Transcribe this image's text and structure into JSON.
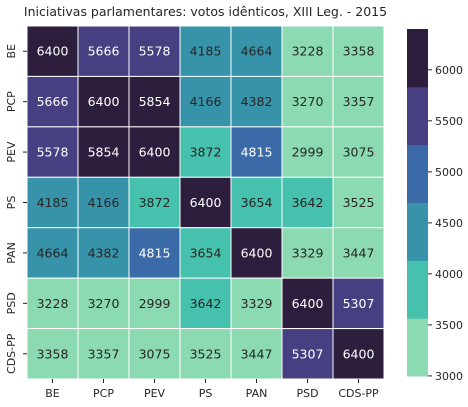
{
  "chart_data": {
    "type": "heatmap",
    "title": "Iniciativas parlamentares: votos idênticos, XIII Leg. - 2015",
    "x_categories": [
      "BE",
      "PCP",
      "PEV",
      "PS",
      "PAN",
      "PSD",
      "CDS-PP"
    ],
    "y_categories": [
      "BE",
      "PCP",
      "PEV",
      "PS",
      "PAN",
      "PSD",
      "CDS-PP"
    ],
    "values": [
      [
        6400,
        5666,
        5578,
        4185,
        4664,
        3228,
        3358
      ],
      [
        5666,
        6400,
        5854,
        4166,
        4382,
        3270,
        3357
      ],
      [
        5578,
        5854,
        6400,
        3872,
        4815,
        2999,
        3075
      ],
      [
        4185,
        4166,
        3872,
        6400,
        3654,
        3642,
        3525
      ],
      [
        4664,
        4382,
        4815,
        3654,
        6400,
        3329,
        3447
      ],
      [
        3228,
        3270,
        2999,
        3642,
        3329,
        6400,
        5307
      ],
      [
        3358,
        3357,
        3075,
        3525,
        3447,
        5307,
        6400
      ]
    ],
    "colorbar": {
      "vmin": 2999,
      "vmax": 6400,
      "ticks": [
        3000,
        3500,
        4000,
        4500,
        5000,
        5500,
        6000
      ],
      "colors": [
        "#8bdab2",
        "#45c1ad",
        "#3793a9",
        "#3a6aa8",
        "#463f82",
        "#2d1e3e"
      ]
    },
    "annotations": "cell values shown in each cell",
    "grid": false
  }
}
